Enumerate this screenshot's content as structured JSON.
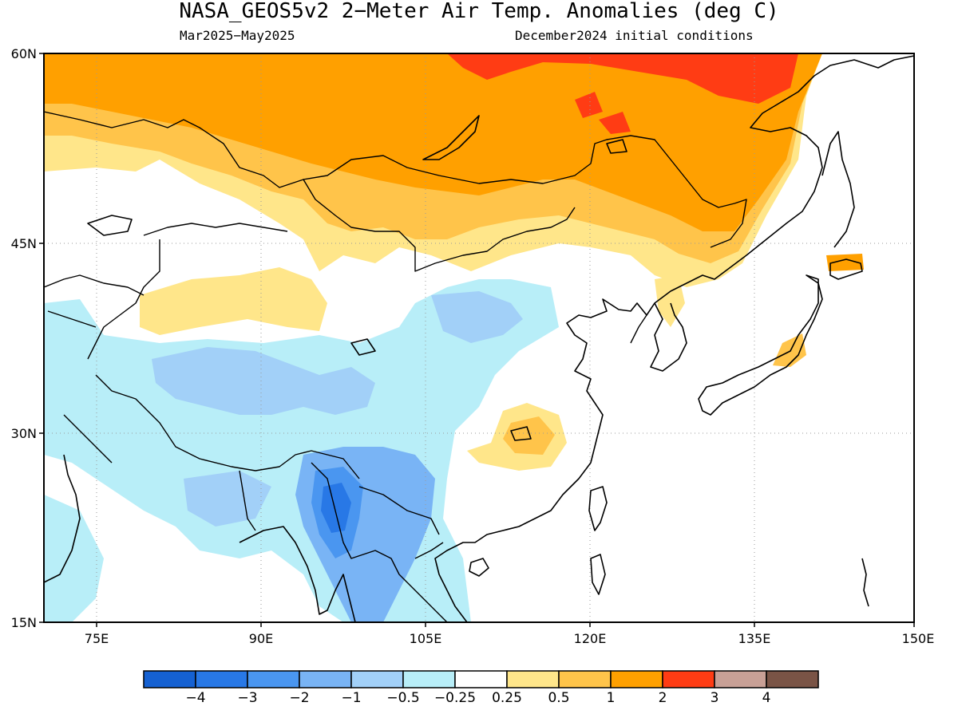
{
  "title": "NASA_GEOS5v2 2−Meter Air Temp. Anomalies (deg C)",
  "period": "Mar2025−May2025",
  "init": "December2024 initial conditions",
  "lat_ticks": [
    "60N",
    "45N",
    "30N",
    "15N"
  ],
  "lon_ticks": [
    "75E",
    "90E",
    "105E",
    "120E",
    "135E",
    "150E"
  ],
  "colorbar": {
    "colors": [
      "#1561d2",
      "#2878e6",
      "#4a96f0",
      "#79b4f5",
      "#a2d0f8",
      "#b8eef8",
      "#ffffff",
      "#ffe68a",
      "#ffc44a",
      "#ffa000",
      "#ff3c14",
      "#c8a096",
      "#7a5446"
    ],
    "labels": [
      "−4",
      "−3",
      "−2",
      "−1",
      "−0.5",
      "−0.25",
      "0.25",
      "0.5",
      "1",
      "2",
      "3",
      "4"
    ]
  }
}
